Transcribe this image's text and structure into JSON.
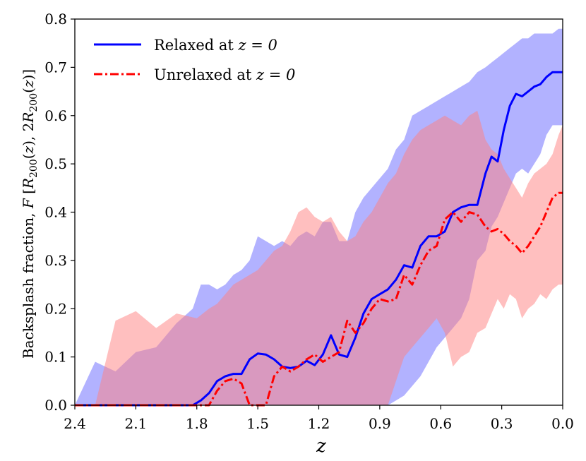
{
  "chart_data": {
    "type": "line",
    "title": "",
    "xlabel": "z",
    "ylabel": "Backsplash fraction, F  [R200(z), 2R200(z)]",
    "xlim": [
      2.4,
      0.0
    ],
    "ylim": [
      0.0,
      0.8
    ],
    "x_inverted": true,
    "xticks": [
      2.4,
      2.1,
      1.8,
      1.5,
      1.2,
      0.9,
      0.6,
      0.3,
      0.0
    ],
    "xtick_labels": [
      "2.4",
      "2.1",
      "1.8",
      "1.5",
      "1.2",
      "0.9",
      "0.6",
      "0.3",
      "0.0"
    ],
    "yticks": [
      0.0,
      0.1,
      0.2,
      0.3,
      0.4,
      0.5,
      0.6,
      0.7,
      0.8
    ],
    "ytick_labels": [
      "0.0",
      "0.1",
      "0.2",
      "0.3",
      "0.4",
      "0.5",
      "0.6",
      "0.7",
      "0.8"
    ],
    "legend_position": "top-left",
    "series": [
      {
        "name": "Relaxed at z = 0",
        "legend_prefix": "Relaxed at ",
        "legend_math": "z = 0",
        "color": "#0000ff",
        "band_color": "#6666ff",
        "linestyle": "solid",
        "x": [
          2.4,
          2.3,
          2.2,
          2.1,
          2.0,
          1.9,
          1.82,
          1.78,
          1.74,
          1.7,
          1.66,
          1.62,
          1.58,
          1.54,
          1.5,
          1.46,
          1.42,
          1.38,
          1.34,
          1.3,
          1.26,
          1.22,
          1.18,
          1.14,
          1.1,
          1.06,
          1.02,
          0.98,
          0.94,
          0.9,
          0.86,
          0.82,
          0.78,
          0.74,
          0.7,
          0.66,
          0.62,
          0.58,
          0.54,
          0.5,
          0.46,
          0.42,
          0.38,
          0.35,
          0.32,
          0.29,
          0.26,
          0.23,
          0.2,
          0.17,
          0.14,
          0.11,
          0.08,
          0.05,
          0.02,
          0.0
        ],
        "y": [
          0.0,
          0.0,
          0.0,
          0.0,
          0.0,
          0.0,
          0.0,
          0.01,
          0.025,
          0.05,
          0.06,
          0.065,
          0.065,
          0.095,
          0.107,
          0.105,
          0.095,
          0.08,
          0.077,
          0.08,
          0.092,
          0.083,
          0.105,
          0.145,
          0.105,
          0.1,
          0.14,
          0.19,
          0.22,
          0.23,
          0.24,
          0.26,
          0.29,
          0.285,
          0.33,
          0.35,
          0.35,
          0.36,
          0.4,
          0.41,
          0.415,
          0.415,
          0.48,
          0.515,
          0.505,
          0.57,
          0.62,
          0.645,
          0.64,
          0.65,
          0.66,
          0.665,
          0.68,
          0.69,
          0.69,
          0.69
        ],
        "band_upper": [
          0.0,
          0.09,
          0.07,
          0.11,
          0.12,
          0.17,
          0.2,
          0.25,
          0.25,
          0.24,
          0.25,
          0.27,
          0.28,
          0.3,
          0.35,
          0.34,
          0.33,
          0.34,
          0.33,
          0.35,
          0.36,
          0.35,
          0.38,
          0.38,
          0.34,
          0.34,
          0.4,
          0.43,
          0.45,
          0.47,
          0.49,
          0.53,
          0.55,
          0.6,
          0.61,
          0.62,
          0.63,
          0.64,
          0.65,
          0.66,
          0.67,
          0.69,
          0.7,
          0.71,
          0.72,
          0.73,
          0.74,
          0.75,
          0.76,
          0.76,
          0.77,
          0.77,
          0.77,
          0.77,
          0.78,
          0.78
        ],
        "band_lower": [
          0.0,
          0.0,
          0.0,
          0.0,
          0.0,
          0.0,
          0.0,
          0.0,
          0.0,
          0.0,
          0.0,
          0.0,
          0.0,
          0.0,
          0.0,
          0.0,
          0.0,
          0.0,
          0.0,
          0.0,
          0.0,
          0.0,
          0.0,
          0.0,
          0.0,
          0.0,
          0.0,
          0.0,
          0.0,
          0.0,
          0.0,
          0.01,
          0.02,
          0.04,
          0.06,
          0.09,
          0.12,
          0.14,
          0.16,
          0.18,
          0.22,
          0.3,
          0.32,
          0.37,
          0.39,
          0.42,
          0.45,
          0.48,
          0.49,
          0.48,
          0.5,
          0.52,
          0.56,
          0.58,
          0.58,
          0.58
        ]
      },
      {
        "name": "Unrelaxed at z = 0",
        "legend_prefix": "Unrelaxed at ",
        "legend_math": "z = 0",
        "color": "#ff0000",
        "band_color": "#ff8080",
        "linestyle": "dashdot",
        "x": [
          2.4,
          2.3,
          2.2,
          2.1,
          2.0,
          1.9,
          1.8,
          1.74,
          1.7,
          1.66,
          1.62,
          1.58,
          1.54,
          1.5,
          1.46,
          1.42,
          1.38,
          1.34,
          1.3,
          1.26,
          1.22,
          1.18,
          1.14,
          1.1,
          1.06,
          1.02,
          0.98,
          0.94,
          0.9,
          0.86,
          0.82,
          0.78,
          0.74,
          0.7,
          0.66,
          0.62,
          0.58,
          0.54,
          0.5,
          0.46,
          0.42,
          0.38,
          0.35,
          0.32,
          0.29,
          0.26,
          0.23,
          0.2,
          0.17,
          0.14,
          0.11,
          0.08,
          0.05,
          0.02,
          0.0
        ],
        "y": [
          0.0,
          0.0,
          0.0,
          0.0,
          0.0,
          0.0,
          0.0,
          0.0,
          0.03,
          0.05,
          0.055,
          0.045,
          0.0,
          0.0,
          0.0,
          0.06,
          0.08,
          0.07,
          0.08,
          0.095,
          0.105,
          0.09,
          0.1,
          0.11,
          0.175,
          0.15,
          0.17,
          0.2,
          0.22,
          0.215,
          0.22,
          0.27,
          0.25,
          0.29,
          0.32,
          0.33,
          0.385,
          0.4,
          0.38,
          0.4,
          0.395,
          0.37,
          0.36,
          0.365,
          0.355,
          0.34,
          0.33,
          0.315,
          0.33,
          0.35,
          0.37,
          0.4,
          0.43,
          0.44,
          0.44
        ],
        "band_upper": [
          0.0,
          0.0,
          0.175,
          0.195,
          0.16,
          0.19,
          0.18,
          0.2,
          0.21,
          0.23,
          0.25,
          0.26,
          0.27,
          0.28,
          0.3,
          0.32,
          0.33,
          0.36,
          0.4,
          0.41,
          0.39,
          0.38,
          0.39,
          0.36,
          0.34,
          0.35,
          0.38,
          0.4,
          0.43,
          0.46,
          0.48,
          0.52,
          0.55,
          0.57,
          0.58,
          0.59,
          0.6,
          0.59,
          0.58,
          0.6,
          0.61,
          0.55,
          0.53,
          0.52,
          0.49,
          0.47,
          0.45,
          0.43,
          0.46,
          0.48,
          0.49,
          0.5,
          0.52,
          0.56,
          0.58
        ],
        "band_lower": [
          0.0,
          0.0,
          0.0,
          0.0,
          0.0,
          0.0,
          0.0,
          0.0,
          0.0,
          0.0,
          0.0,
          0.0,
          0.0,
          0.0,
          0.0,
          0.0,
          0.0,
          0.0,
          0.0,
          0.0,
          0.0,
          0.0,
          0.0,
          0.0,
          0.0,
          0.0,
          0.0,
          0.0,
          0.0,
          0.0,
          0.05,
          0.1,
          0.12,
          0.14,
          0.16,
          0.18,
          0.15,
          0.08,
          0.1,
          0.11,
          0.15,
          0.16,
          0.19,
          0.22,
          0.2,
          0.23,
          0.22,
          0.18,
          0.2,
          0.21,
          0.23,
          0.22,
          0.24,
          0.25,
          0.25
        ]
      }
    ]
  }
}
